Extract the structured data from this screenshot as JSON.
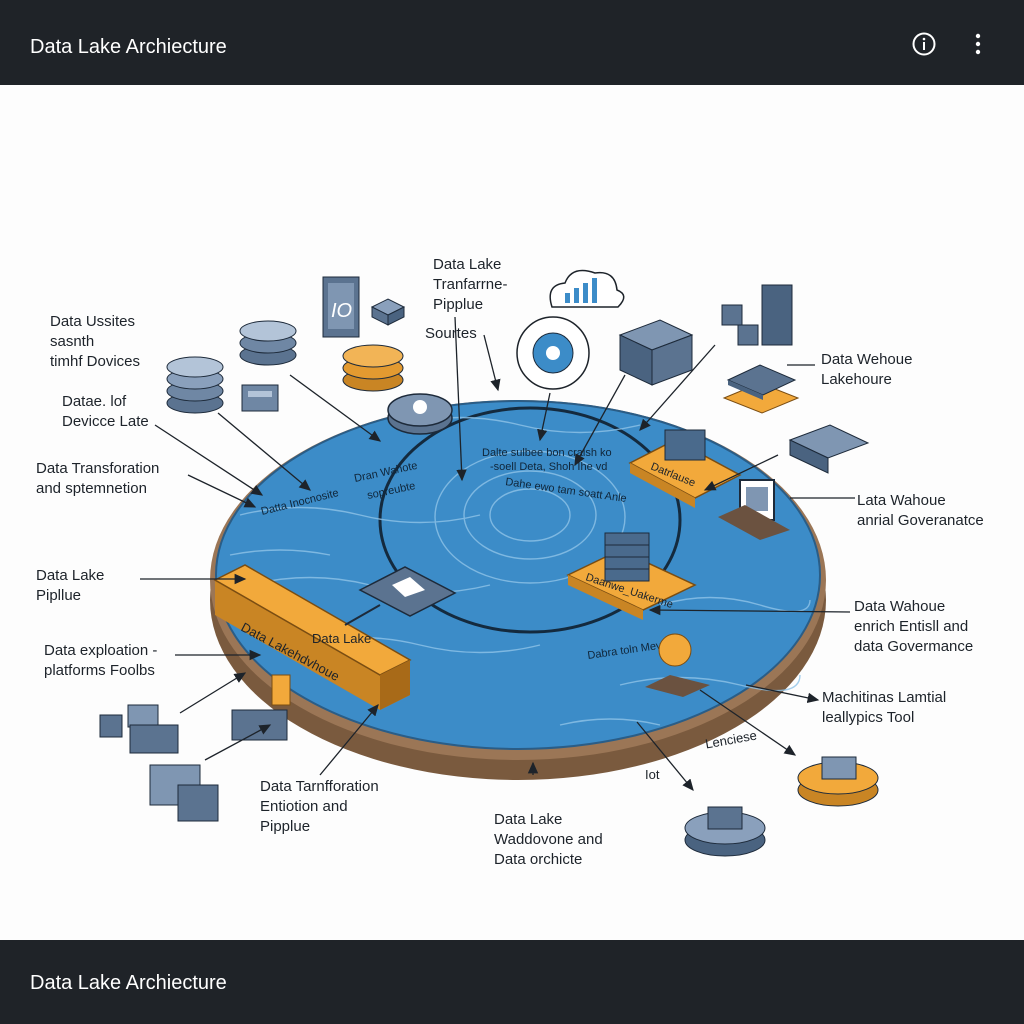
{
  "header": {
    "title": "Data Lake Archiecture"
  },
  "footer": {
    "title": "Data Lake Archiecture"
  },
  "icons": [
    "info-icon",
    "more-vertical-icon",
    "chevron-right-icon"
  ],
  "colors": {
    "bar": "#1f2328",
    "lake": "#3c8cc8",
    "rim": "#8a6a4a",
    "accent": "#f2a93b",
    "node": "#5b7390"
  },
  "diagram": {
    "center_label": "Data Lake\nTranfarrne-\nPipplue",
    "labels": {
      "sources_devices": "Data Ussites\nsasnth\ntimhf Dovices",
      "device_lake": "Datae. lof\nDevicce Late",
      "transformation_left": "Data Transforation\nand sptemnetion",
      "pipeline_left": "Data Lake\nPipllue",
      "exploration": "Data exploation -\nplatforms Foolbs",
      "transformation_bottom": "Data Tarnfforation\nEntiotion and\nPipplue",
      "warehouse_bottom": "Data Lake\nWaddovone and\nData orchicte",
      "sources": "Sourtes",
      "warehouse_top": "Data Wehoue\nLakehoure",
      "governance_top": "Lata Wahoue\nanrial Goveranatce",
      "governance_mid": "Data Wahoue\nenrich Entisll and\ndata Govermance",
      "ml_tool": "Machitinas Lamtial\nleallypics Tool",
      "iot": "Iot",
      "license": "Lenciese"
    },
    "inner_labels": {
      "lake_left": "Datta Inocnosite",
      "lake_center_top": "Dran Wahote\nsopreubte",
      "lake_top": "Dalte sulbee bon cralsh ko\n-soell Deta, Shoh Ihe vd\nDahe ewo tam soatt Anle",
      "lake_right_tile": "Datrlause",
      "lake_mid_tile": "Daahwe_Uakerme",
      "lake_bottom": "Dabra toln Mevoa",
      "lake_orange": "Data Lake\nData Lakehdvhoue",
      "io_block": "IO"
    }
  }
}
